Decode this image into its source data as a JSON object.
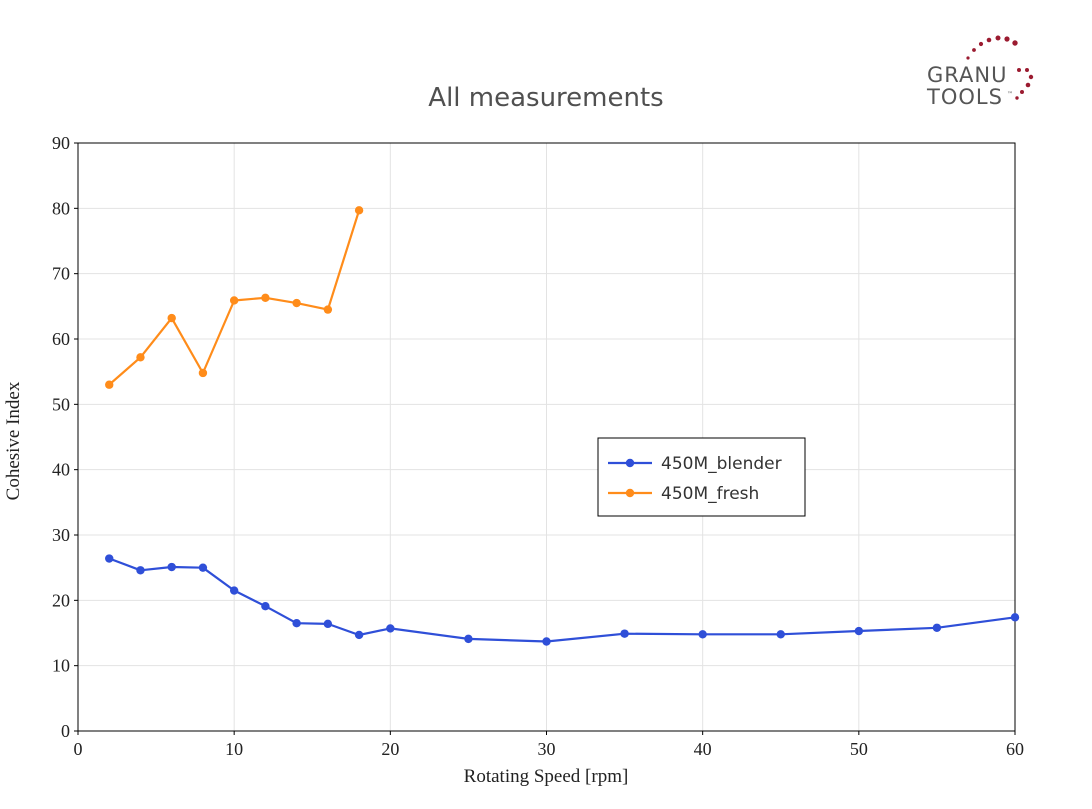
{
  "logo": {
    "line1": "GRANU",
    "line2": "TOOLS",
    "mark": "™",
    "dot_color": "#9b1b30"
  },
  "chart_data": {
    "type": "line",
    "title": "All measurements",
    "xlabel": "Rotating Speed [rpm]",
    "ylabel": "Cohesive Index",
    "xlim": [
      0,
      60
    ],
    "ylim": [
      0,
      90
    ],
    "xticks": [
      0,
      10,
      20,
      30,
      40,
      50,
      60
    ],
    "yticks": [
      0,
      10,
      20,
      30,
      40,
      50,
      60,
      70,
      80,
      90
    ],
    "grid": true,
    "legend_position": "center-right",
    "series": [
      {
        "name": "450M_blender",
        "color": "#2f4fd8",
        "x": [
          2,
          4,
          6,
          8,
          10,
          12,
          14,
          16,
          18,
          20,
          25,
          30,
          35,
          40,
          45,
          50,
          55,
          60
        ],
        "y": [
          26.4,
          24.6,
          25.1,
          25.0,
          21.5,
          19.1,
          16.5,
          16.4,
          14.7,
          15.7,
          14.1,
          13.7,
          14.9,
          14.8,
          14.8,
          15.3,
          15.8,
          17.4
        ]
      },
      {
        "name": "450M_fresh",
        "color": "#ff8c1a",
        "x": [
          2,
          4,
          6,
          8,
          10,
          12,
          14,
          16,
          18
        ],
        "y": [
          53.0,
          57.2,
          63.2,
          54.8,
          65.9,
          66.3,
          65.5,
          64.5,
          79.7
        ]
      }
    ]
  }
}
